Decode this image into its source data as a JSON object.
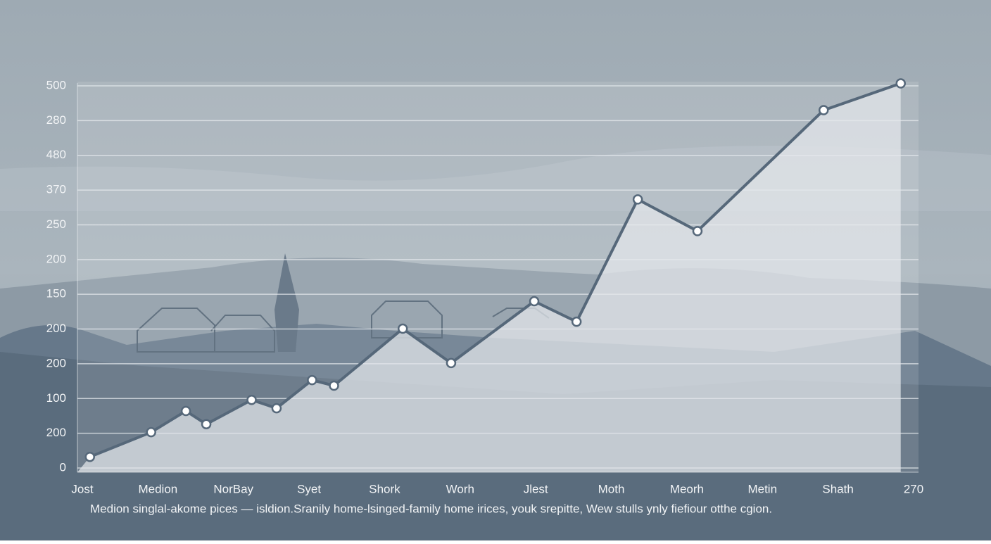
{
  "chart_data": {
    "type": "line",
    "categories": [
      "Jost",
      "Medion",
      "NorBay",
      "Syet",
      "Shork",
      "Worh",
      "Jlest",
      "Moth",
      "Meorh",
      "Metin",
      "Shath",
      "270"
    ],
    "x": [
      0.1,
      0.91,
      1.37,
      1.64,
      2.24,
      2.57,
      3.04,
      3.33,
      4.24,
      4.88,
      5.98,
      6.54,
      7.35,
      8.14,
      9.81,
      10.83
    ],
    "values": [
      0.32,
      1.03,
      1.64,
      1.26,
      1.96,
      1.72,
      2.53,
      2.37,
      4.01,
      3.02,
      4.8,
      4.21,
      7.73,
      6.82,
      10.3,
      11.07
    ],
    "color": "#56687a",
    "xlim": [
      0,
      11
    ],
    "ylim": [
      0,
      11
    ],
    "yticks": [
      0,
      1,
      2,
      3,
      4,
      5,
      6,
      7,
      8,
      9,
      10,
      11
    ],
    "ytick_labels": [
      "0",
      "200",
      "100",
      "200",
      "200",
      "150",
      "200",
      "250",
      "370",
      "480",
      "280",
      "500"
    ],
    "grid": true,
    "caption": "Medion singlal-akome pices — isldion.Sranily home-lsinged-family home irices, youk srepitte, Wew stulls ynly fiefiour otthe cgion."
  }
}
